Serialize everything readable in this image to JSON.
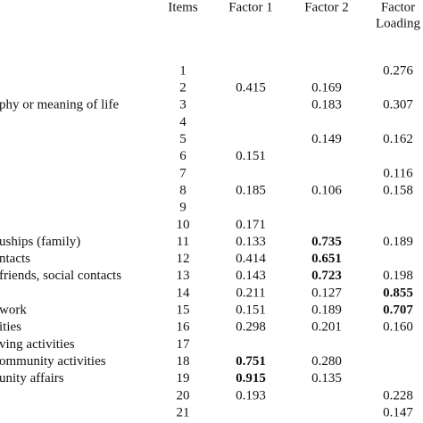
{
  "table": {
    "columns": [
      "Items",
      "Factor 1",
      "Factor 2",
      [
        "Factor",
        "Loading"
      ]
    ],
    "rows": [
      {
        "label": null,
        "item": "1",
        "values": [
          null,
          null,
          "0.276"
        ],
        "bold": []
      },
      {
        "label": null,
        "item": "2",
        "values": [
          "0.415",
          "0.169",
          null
        ],
        "bold": []
      },
      {
        "label": "phy or meaning of life",
        "item": "3",
        "values": [
          null,
          "0.183",
          "0.307"
        ],
        "bold": []
      },
      {
        "label": null,
        "item": "4",
        "values": [
          null,
          null,
          null
        ],
        "bold": []
      },
      {
        "label": null,
        "item": "5",
        "values": [
          null,
          "0.149",
          "0.162"
        ],
        "bold": []
      },
      {
        "label": null,
        "item": "6",
        "values": [
          "0.151",
          null,
          null
        ],
        "bold": []
      },
      {
        "label": null,
        "item": "7",
        "values": [
          null,
          null,
          "0.116"
        ],
        "bold": []
      },
      {
        "label": null,
        "item": "8",
        "values": [
          "0.185",
          "0.106",
          "0.158"
        ],
        "bold": []
      },
      {
        "label": null,
        "item": "9",
        "values": [
          null,
          null,
          null
        ],
        "bold": []
      },
      {
        "label": null,
        "item": "10",
        "values": [
          "0.171",
          null,
          null
        ],
        "bold": []
      },
      {
        "label": "uships (family)",
        "item": "11",
        "values": [
          "0.133",
          "0.735",
          "0.189"
        ],
        "bold": [
          1
        ]
      },
      {
        "label": "ntacts",
        "item": "12",
        "values": [
          "0.414",
          "0.651",
          null
        ],
        "bold": [
          1
        ]
      },
      {
        "label": "friends, social contacts",
        "item": "13",
        "values": [
          "0.143",
          "0.723",
          "0.198"
        ],
        "bold": [
          1
        ]
      },
      {
        "label": null,
        "item": "14",
        "values": [
          "0.211",
          "0.127",
          "0.855"
        ],
        "bold": [
          2
        ]
      },
      {
        "label": "work",
        "item": "15",
        "values": [
          "0.151",
          "0.189",
          "0.707"
        ],
        "bold": [
          2
        ]
      },
      {
        "label": "ities",
        "item": "16",
        "values": [
          "0.298",
          "0.201",
          "0.160"
        ],
        "bold": []
      },
      {
        "label": "ving activities",
        "item": "17",
        "values": [
          null,
          null,
          null
        ],
        "bold": []
      },
      {
        "label": "ommunity activities",
        "item": "18",
        "values": [
          "0.751",
          "0.280",
          null
        ],
        "bold": [
          0
        ]
      },
      {
        "label": "unity affairs",
        "item": "19",
        "values": [
          "0.915",
          "0.135",
          null
        ],
        "bold": [
          0
        ]
      },
      {
        "label": null,
        "item": "20",
        "values": [
          "0.193",
          null,
          "0.228"
        ],
        "bold": []
      },
      {
        "label": null,
        "item": "21",
        "values": [
          null,
          null,
          "0.147"
        ],
        "bold": []
      }
    ]
  }
}
